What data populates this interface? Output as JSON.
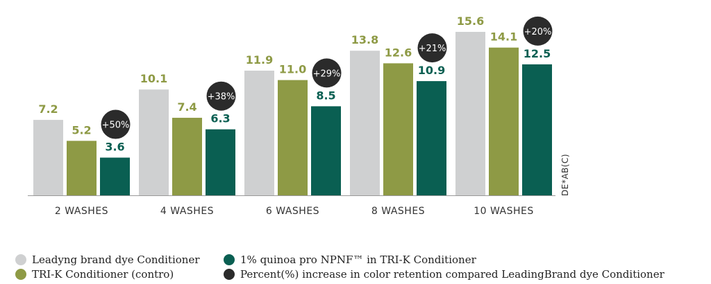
{
  "colors": {
    "leading": "#cfd0d1",
    "trik": "#8e9a45",
    "quinoa": "#0a5f52",
    "bubble": "#2b2b2b",
    "axis": "#999999"
  },
  "chart_data": {
    "type": "bar",
    "categories": [
      "2 WASHES",
      "4 WASHES",
      "6 WASHES",
      "8 WASHES",
      "10 WASHES"
    ],
    "series": [
      {
        "name": "Leadyng brand dye Conditioner",
        "values": [
          7.2,
          10.1,
          11.9,
          13.8,
          15.6
        ]
      },
      {
        "name": "TRI-K Conditioner (contro)",
        "values": [
          5.2,
          7.4,
          11.0,
          12.6,
          14.1
        ]
      },
      {
        "name": "1% quinoa pro NPNF™ in TRI-K Conditioner",
        "values": [
          3.6,
          6.3,
          8.5,
          10.9,
          12.5
        ]
      }
    ],
    "value_labels": [
      [
        "7.2",
        "10.1",
        "11.9",
        "13.8",
        "15.6"
      ],
      [
        "5.2",
        "7.4",
        "11.0",
        "12.6",
        "14.1"
      ],
      [
        "3.6",
        "6.3",
        "8.5",
        "10.9",
        "12.5"
      ]
    ],
    "percent_increase": [
      "+50%",
      "+38%",
      "+29%",
      "+21%",
      "+20%"
    ],
    "ylabel": "DE*AB(C)",
    "xlabel": "",
    "ylim": [
      0,
      16.5
    ],
    "grid": false
  },
  "legend": {
    "items": [
      {
        "label": "Leadyng brand dye Conditioner",
        "color_key": "leading"
      },
      {
        "label": "TRI-K Conditioner (contro)",
        "color_key": "trik"
      },
      {
        "label": "1% quinoa pro NPNF™ in TRI-K Conditioner",
        "color_key": "quinoa"
      },
      {
        "label": "Percent(%) increase in color retention compared LeadingBrand dye Conditioner",
        "color_key": "bubble"
      }
    ]
  }
}
